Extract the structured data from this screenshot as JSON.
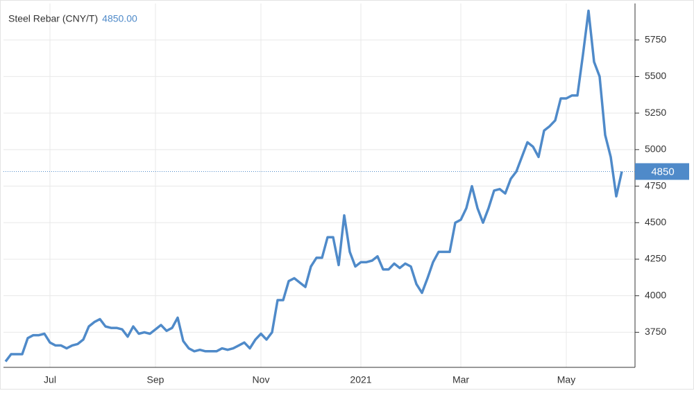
{
  "chart_data": {
    "type": "line",
    "title": "Steel Rebar (CNY/T)",
    "headline_value": "4850.00",
    "last_value": 4850,
    "color": "#4f8ac9",
    "grid": true,
    "ylim": [
      3510,
      6000
    ],
    "yticks": [
      3750,
      4000,
      4250,
      4500,
      4750,
      5000,
      5250,
      5500,
      5750
    ],
    "categories": [
      null,
      null,
      null,
      null,
      null,
      null,
      null,
      null,
      "Jul",
      null,
      null,
      null,
      null,
      null,
      null,
      null,
      null,
      null,
      null,
      null,
      null,
      null,
      null,
      null,
      null,
      null,
      null,
      "Sep",
      null,
      null,
      null,
      null,
      null,
      null,
      null,
      null,
      null,
      null,
      null,
      null,
      null,
      null,
      null,
      null,
      null,
      null,
      "Nov",
      null,
      null,
      null,
      null,
      null,
      null,
      null,
      null,
      null,
      null,
      null,
      null,
      null,
      null,
      null,
      null,
      null,
      "2021",
      null,
      null,
      null,
      null,
      null,
      null,
      null,
      null,
      null,
      null,
      null,
      null,
      null,
      null,
      null,
      null,
      null,
      "Mar",
      null,
      null,
      null,
      null,
      null,
      null,
      null,
      null,
      null,
      null,
      null,
      null,
      null,
      null,
      null,
      null,
      null,
      null,
      "May",
      null,
      null,
      null,
      null,
      null,
      null,
      null,
      null,
      null,
      null
    ],
    "values": [
      3550,
      3600,
      3600,
      3600,
      3710,
      3730,
      3730,
      3740,
      3680,
      3660,
      3660,
      3640,
      3660,
      3670,
      3700,
      3790,
      3820,
      3840,
      3790,
      3780,
      3780,
      3770,
      3720,
      3790,
      3740,
      3750,
      3740,
      3770,
      3800,
      3760,
      3780,
      3850,
      3690,
      3640,
      3620,
      3630,
      3620,
      3620,
      3620,
      3640,
      3630,
      3640,
      3660,
      3680,
      3640,
      3700,
      3740,
      3700,
      3750,
      3970,
      3970,
      4100,
      4120,
      4090,
      4060,
      4200,
      4260,
      4260,
      4400,
      4400,
      4210,
      4550,
      4300,
      4200,
      4230,
      4230,
      4240,
      4270,
      4180,
      4180,
      4220,
      4190,
      4220,
      4200,
      4080,
      4020,
      4120,
      4230,
      4300,
      4300,
      4300,
      4500,
      4520,
      4600,
      4750,
      4600,
      4500,
      4600,
      4720,
      4730,
      4700,
      4800,
      4850,
      4950,
      5050,
      5020,
      4950,
      5130,
      5160,
      5200,
      5350,
      5350,
      5370,
      5370,
      5650,
      5950,
      5600,
      5500,
      5100,
      4950,
      4680,
      4850
    ]
  }
}
